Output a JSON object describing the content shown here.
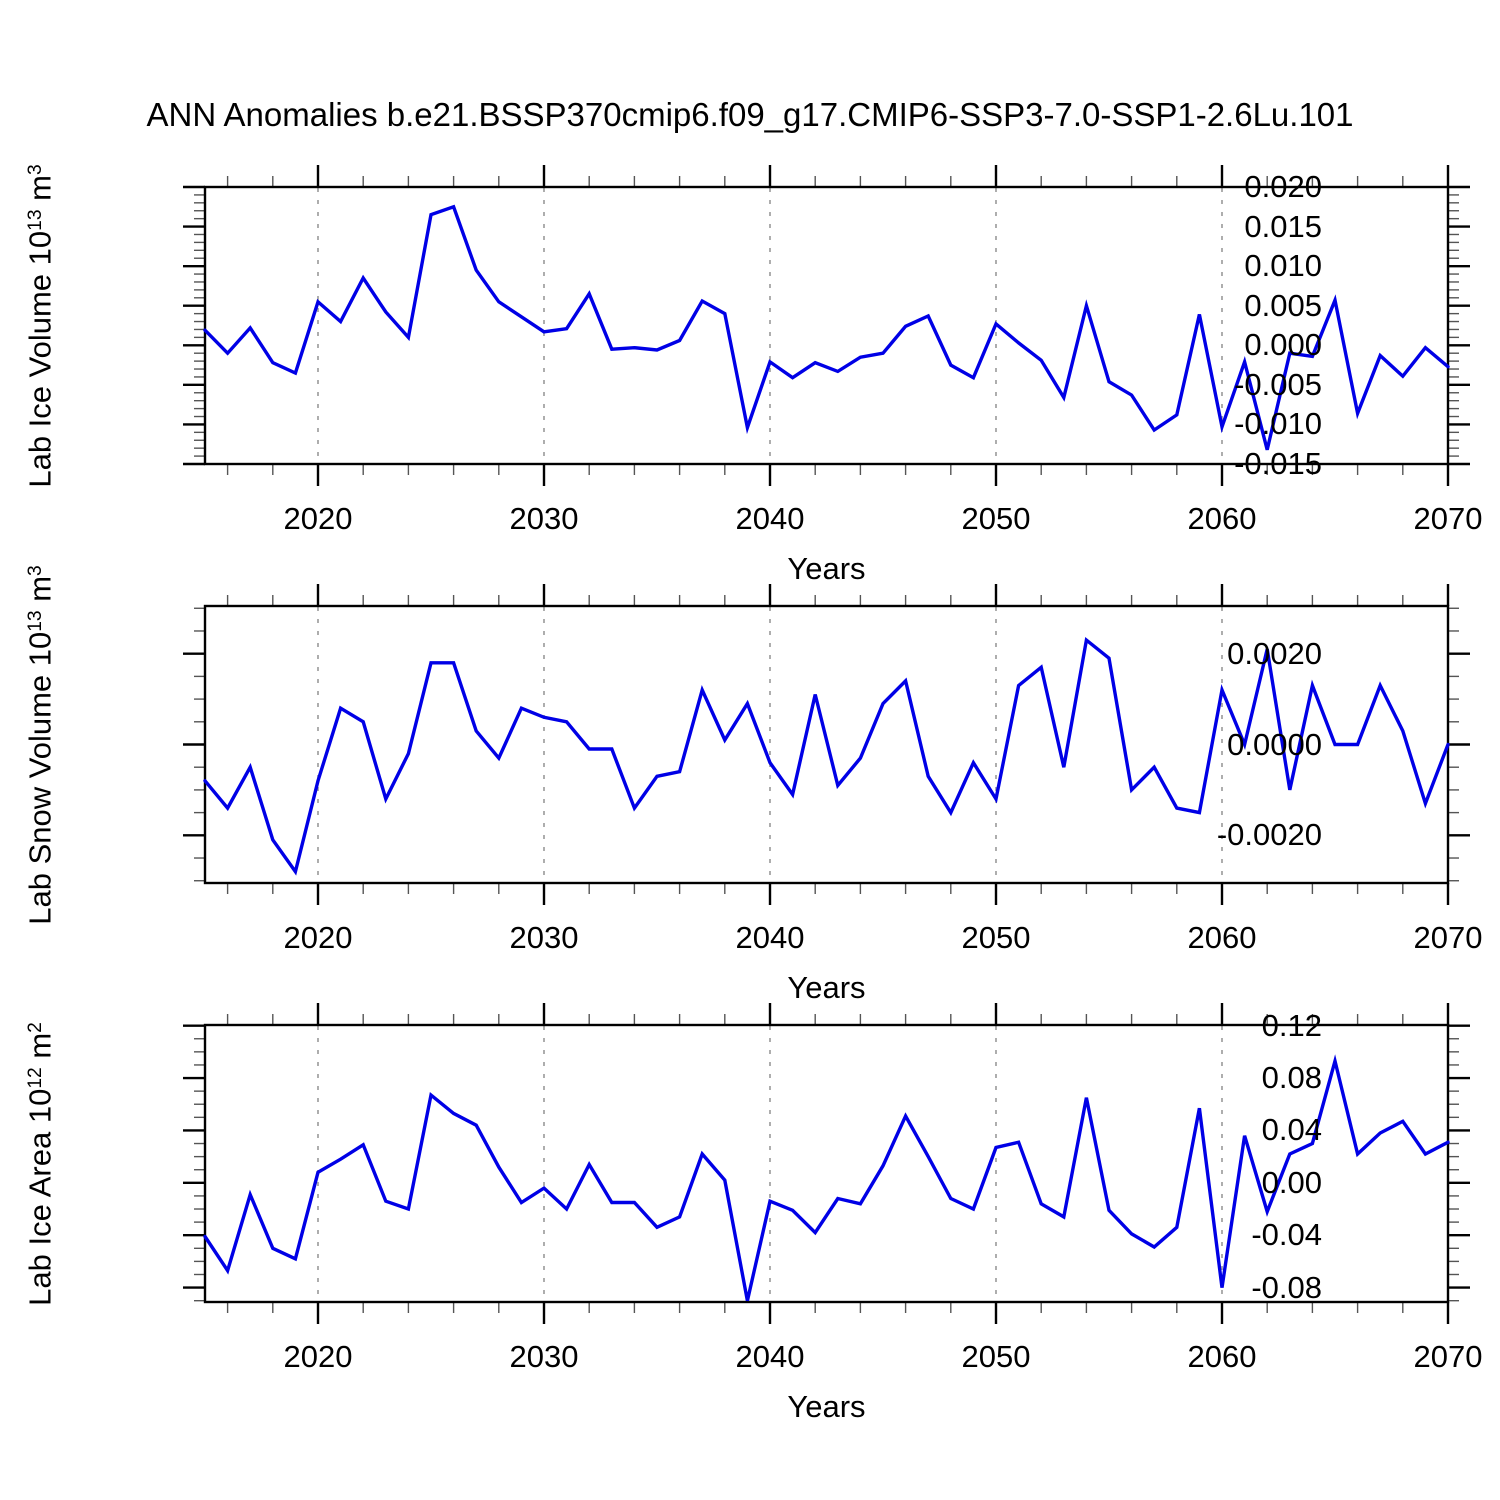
{
  "title": "ANN Anomalies b.e21.BSSP370cmip6.f09_g17.CMIP6-SSP3-7.0-SSP1-2.6Lu.101",
  "style": {
    "line_color": "#0000e6",
    "gridline_color": "#999999",
    "axis_color": "#000000",
    "minor_tick_color": "#555555",
    "background": "#ffffff"
  },
  "years": [
    2015,
    2016,
    2017,
    2018,
    2019,
    2020,
    2021,
    2022,
    2023,
    2024,
    2025,
    2026,
    2027,
    2028,
    2029,
    2030,
    2031,
    2032,
    2033,
    2034,
    2035,
    2036,
    2037,
    2038,
    2039,
    2040,
    2041,
    2042,
    2043,
    2044,
    2045,
    2046,
    2047,
    2048,
    2049,
    2050,
    2051,
    2052,
    2053,
    2054,
    2055,
    2056,
    2057,
    2058,
    2059,
    2060,
    2061,
    2062,
    2063,
    2064,
    2065,
    2066,
    2067,
    2068,
    2069,
    2070
  ],
  "x_axis": {
    "label": "Years",
    "range": [
      2015,
      2070
    ],
    "ticks": [
      {
        "year": 2020,
        "label": "2020"
      },
      {
        "year": 2030,
        "label": "2030"
      },
      {
        "year": 2040,
        "label": "2040"
      },
      {
        "year": 2050,
        "label": "2050"
      },
      {
        "year": 2060,
        "label": "2060"
      },
      {
        "year": 2070,
        "label": "2070"
      }
    ],
    "minor_start": 2016,
    "minor_step": 2,
    "gridline_years": [
      2020,
      2030,
      2040,
      2050,
      2060
    ]
  },
  "chart_data": [
    {
      "id": "lab-ice-volume",
      "type": "line",
      "title": "",
      "ylabel": {
        "prefix": "Lab Ice Volume 10",
        "sup1": "13",
        "mid": " m",
        "sup2": "3"
      },
      "ylim": [
        -0.015,
        0.02
      ],
      "y_minor_step": 0.001,
      "grid": "dashed-vertical-decades",
      "legend": "none",
      "yticks": [
        {
          "v": 0.02,
          "label": "0.020"
        },
        {
          "v": 0.015,
          "label": "0.015"
        },
        {
          "v": 0.01,
          "label": "0.010"
        },
        {
          "v": 0.005,
          "label": "0.005"
        },
        {
          "v": 0.0,
          "label": "0.000"
        },
        {
          "v": -0.005,
          "label": "-0.005"
        },
        {
          "v": -0.01,
          "label": "-0.010"
        },
        {
          "v": -0.015,
          "label": "-0.015"
        }
      ],
      "values": [
        0.0019,
        -0.001,
        0.0022,
        -0.0022,
        -0.0035,
        0.0055,
        0.003,
        0.0085,
        0.0042,
        0.001,
        0.0165,
        0.0175,
        0.0095,
        0.0055,
        0.0036,
        0.0017,
        0.0021,
        0.0065,
        -0.0005,
        -0.0003,
        -0.0006,
        0.0006,
        0.0056,
        0.004,
        -0.0104,
        -0.0021,
        -0.0041,
        -0.0022,
        -0.0033,
        -0.0015,
        -0.001,
        0.0024,
        0.0037,
        -0.0025,
        -0.0041,
        0.0027,
        0.0003,
        -0.0019,
        -0.0066,
        0.005,
        -0.0046,
        -0.0063,
        -0.0107,
        -0.0088,
        0.0039,
        -0.0103,
        -0.0021,
        -0.0132,
        -0.001,
        -0.0014,
        0.0057,
        -0.0086,
        -0.0013,
        -0.0039,
        -0.0003,
        -0.0027
      ]
    },
    {
      "id": "lab-snow-volume",
      "type": "line",
      "title": "",
      "ylabel": {
        "prefix": "Lab Snow Volume 10",
        "sup1": "13",
        "mid": " m",
        "sup2": "3"
      },
      "ylim": [
        -0.00305,
        0.00305
      ],
      "y_minor_step": 0.0005,
      "grid": "dashed-vertical-decades",
      "legend": "none",
      "yticks": [
        {
          "v": 0.002,
          "label": "0.0020"
        },
        {
          "v": 0.0,
          "label": "0.0000"
        },
        {
          "v": -0.002,
          "label": "-0.0020"
        }
      ],
      "values": [
        -0.0008,
        -0.0014,
        -0.0005,
        -0.0021,
        -0.0028,
        -0.0008,
        0.0008,
        0.0005,
        -0.0012,
        -0.0002,
        0.0018,
        0.0018,
        0.0003,
        -0.0003,
        0.0008,
        0.0006,
        0.0005,
        -0.0001,
        -0.0001,
        -0.0014,
        -0.0007,
        -0.0006,
        0.0012,
        0.0001,
        0.0009,
        -0.0004,
        -0.0011,
        0.0011,
        -0.0009,
        -0.0003,
        0.0009,
        0.0014,
        -0.0007,
        -0.0015,
        -0.0004,
        -0.0012,
        0.0013,
        0.0017,
        -0.0005,
        0.0023,
        0.0019,
        -0.001,
        -0.0005,
        -0.0014,
        -0.0015,
        0.0012,
        0.0,
        0.0021,
        -0.001,
        0.0013,
        0.0,
        0.0,
        0.0013,
        0.0003,
        -0.0013,
        0.0
      ]
    },
    {
      "id": "lab-ice-area",
      "type": "line",
      "title": "",
      "ylabel": {
        "prefix": "Lab Ice Area 10",
        "sup1": "12",
        "mid": " m",
        "sup2": "2"
      },
      "ylim": [
        -0.091,
        0.1205
      ],
      "y_minor_step": 0.01,
      "grid": "dashed-vertical-decades",
      "legend": "none",
      "yticks": [
        {
          "v": 0.12,
          "label": "0.12"
        },
        {
          "v": 0.08,
          "label": "0.08"
        },
        {
          "v": 0.04,
          "label": "0.04"
        },
        {
          "v": 0.0,
          "label": "0.00"
        },
        {
          "v": -0.04,
          "label": "-0.04"
        },
        {
          "v": -0.08,
          "label": "-0.08"
        }
      ],
      "values": [
        -0.041,
        -0.067,
        -0.009,
        -0.05,
        -0.058,
        0.008,
        0.018,
        0.029,
        -0.014,
        -0.02,
        0.067,
        0.053,
        0.044,
        0.012,
        -0.015,
        -0.004,
        -0.02,
        0.014,
        -0.015,
        -0.015,
        -0.034,
        -0.026,
        0.022,
        0.002,
        -0.09,
        -0.014,
        -0.021,
        -0.038,
        -0.012,
        -0.016,
        0.013,
        0.051,
        0.02,
        -0.012,
        -0.02,
        0.027,
        0.031,
        -0.016,
        -0.026,
        0.065,
        -0.021,
        -0.039,
        -0.049,
        -0.034,
        0.057,
        -0.08,
        0.036,
        -0.022,
        0.022,
        0.03,
        0.093,
        0.022,
        0.038,
        0.047,
        0.022,
        0.031
      ]
    }
  ]
}
